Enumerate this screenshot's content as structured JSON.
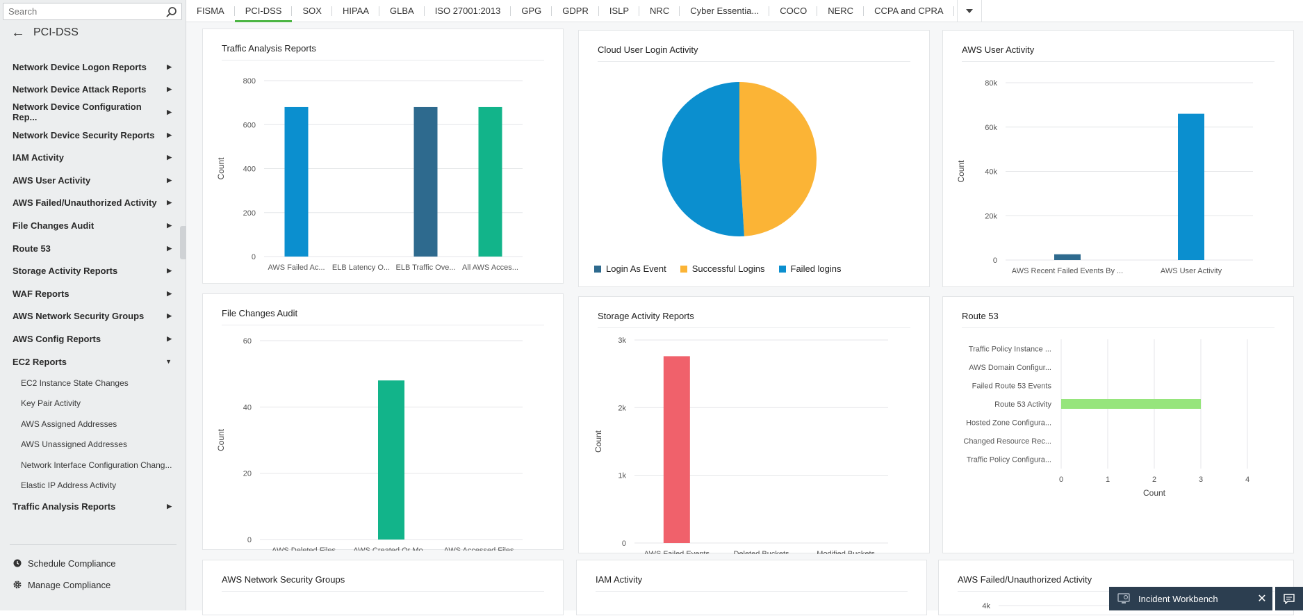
{
  "search": {
    "placeholder": "Search"
  },
  "sidebar": {
    "title": "PCI-DSS",
    "items": [
      {
        "label": "Network Device Logon Reports"
      },
      {
        "label": "Network Device Attack Reports"
      },
      {
        "label": "Network Device Configuration Rep..."
      },
      {
        "label": "Network Device Security Reports"
      },
      {
        "label": "IAM Activity"
      },
      {
        "label": "AWS User Activity"
      },
      {
        "label": "AWS Failed/Unauthorized Activity"
      },
      {
        "label": "File Changes Audit"
      },
      {
        "label": "Route 53"
      },
      {
        "label": "Storage Activity Reports"
      },
      {
        "label": "WAF Reports"
      },
      {
        "label": "AWS Network Security Groups"
      },
      {
        "label": "AWS Config Reports"
      },
      {
        "label": "EC2 Reports"
      }
    ],
    "subitems": [
      {
        "label": "EC2 Instance State Changes"
      },
      {
        "label": "Key Pair Activity"
      },
      {
        "label": "AWS Assigned Addresses"
      },
      {
        "label": "AWS Unassigned Addresses"
      },
      {
        "label": "Network Interface Configuration Chang..."
      },
      {
        "label": "Elastic IP Address Activity"
      }
    ],
    "last_item": {
      "label": "Traffic Analysis Reports"
    },
    "footer": {
      "schedule": "Schedule Compliance",
      "manage": "Manage Compliance"
    }
  },
  "tabs": [
    {
      "label": "FISMA"
    },
    {
      "label": "PCI-DSS"
    },
    {
      "label": "SOX"
    },
    {
      "label": "HIPAA"
    },
    {
      "label": "GLBA"
    },
    {
      "label": "ISO 27001:2013"
    },
    {
      "label": "GPG"
    },
    {
      "label": "GDPR"
    },
    {
      "label": "ISLP"
    },
    {
      "label": "NRC"
    },
    {
      "label": "Cyber Essentia..."
    },
    {
      "label": "COCO"
    },
    {
      "label": "NERC"
    },
    {
      "label": "CCPA and CPRA"
    }
  ],
  "panels": {
    "p1": {
      "title": "Traffic Analysis Reports"
    },
    "p2": {
      "title": "Cloud User Login Activity"
    },
    "p3": {
      "title": "AWS User Activity"
    },
    "p4": {
      "title": "File Changes Audit"
    },
    "p5": {
      "title": "Storage Activity Reports"
    },
    "p6": {
      "title": "Route 53"
    },
    "p7": {
      "title": "AWS Network Security Groups"
    },
    "p8": {
      "title": "IAM Activity"
    },
    "p9": {
      "title": "AWS Failed/Unauthorized Activity"
    }
  },
  "incident_workbench": {
    "label": "Incident Workbench"
  },
  "chart_data": [
    {
      "id": "traffic",
      "type": "bar",
      "title": "Traffic Analysis Reports",
      "ylabel": "Count",
      "ylim": [
        0,
        800
      ],
      "yticks": [
        "0",
        "200",
        "400",
        "600",
        "800"
      ],
      "categories": [
        "AWS Failed Ac...",
        "ELB Latency O...",
        "ELB Traffic Ove...",
        "All AWS Acces..."
      ],
      "values": [
        680,
        0,
        680,
        680
      ],
      "colors": [
        "#0b8fcf",
        "#0b8fcf",
        "#2e6a8e",
        "#12b48a"
      ]
    },
    {
      "id": "cloudlogin",
      "type": "pie",
      "title": "Cloud User Login Activity",
      "labels": [
        "Login As Event",
        "Successful Logins",
        "Failed logins"
      ],
      "values": [
        0,
        49,
        51
      ],
      "colors": [
        "#2e6a8e",
        "#fbb436",
        "#0b8fcf"
      ]
    },
    {
      "id": "awsuser",
      "type": "bar",
      "title": "AWS User Activity",
      "ylabel": "Count",
      "ylim": [
        0,
        80000
      ],
      "yticks": [
        "0",
        "20k",
        "40k",
        "60k",
        "80k"
      ],
      "categories": [
        "AWS Recent Failed Events By ...",
        "AWS User Activity"
      ],
      "values": [
        2600,
        66000
      ],
      "colors": [
        "#2e6a8e",
        "#0b8fcf"
      ]
    },
    {
      "id": "filechanges",
      "type": "bar",
      "title": "File Changes Audit",
      "ylabel": "Count",
      "ylim": [
        0,
        60
      ],
      "yticks": [
        "0",
        "20",
        "40",
        "60"
      ],
      "categories": [
        "AWS Deleted Files",
        "AWS Created Or Mo...",
        "AWS Accessed Files"
      ],
      "values": [
        0,
        48,
        0
      ],
      "colors": [
        "#12b48a",
        "#12b48a",
        "#12b48a"
      ]
    },
    {
      "id": "storage",
      "type": "bar",
      "title": "Storage Activity Reports",
      "ylabel": "Count",
      "ylim": [
        0,
        3000
      ],
      "yticks": [
        "0",
        "1k",
        "2k",
        "3k"
      ],
      "categories": [
        "AWS Failed Events",
        "Deleted Buckets",
        "Modified Buckets"
      ],
      "values": [
        2760,
        0,
        0
      ],
      "colors": [
        "#f0616b",
        "#f0616b",
        "#f0616b"
      ]
    },
    {
      "id": "route53",
      "type": "bar",
      "orientation": "horizontal",
      "title": "Route 53",
      "xlabel": "Count",
      "xlim": [
        0,
        4
      ],
      "xticks": [
        "0",
        "1",
        "2",
        "3",
        "4"
      ],
      "categories": [
        "Traffic Policy Instance ...",
        "AWS Domain Configur...",
        "Failed Route 53 Events",
        "Route 53 Activity",
        "Hosted Zone Configura...",
        "Changed Resource Rec...",
        "Traffic Policy Configura..."
      ],
      "values": [
        0,
        0,
        0,
        3,
        0,
        0,
        0
      ],
      "colors": [
        "#96e57c"
      ]
    },
    {
      "id": "failedunauth",
      "type": "bar",
      "title": "AWS Failed/Unauthorized Activity",
      "yticks": [
        "4k"
      ],
      "categories": [],
      "values": []
    }
  ]
}
